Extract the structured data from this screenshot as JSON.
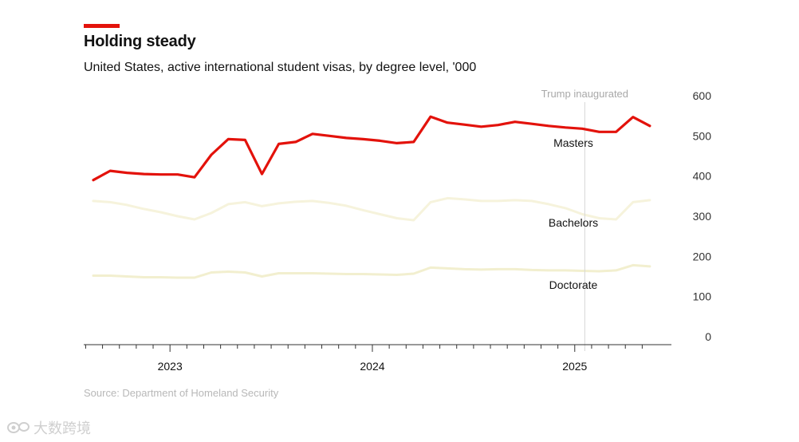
{
  "header": {
    "title": "Holding steady",
    "subtitle": "United States, active international student visas, by degree level, '000"
  },
  "footer": {
    "source": "Source: Department of Homeland Security",
    "watermark": "大数跨境",
    "watermark_icon": "eye-logo-icon"
  },
  "colors": {
    "accent": "#e3120b",
    "masters": "#e3120b",
    "bachelors": "#f6f3dc",
    "doctorate": "#f2efcf",
    "annotation": "#a8a8a8"
  },
  "chart_data": {
    "type": "line",
    "title": "Holding steady",
    "subtitle": "United States, active international student visas, by degree level, '000",
    "x_unit": "month",
    "x_start": "2022-08",
    "x_end": "2025-05",
    "x_ticks": [
      "2023",
      "2024",
      "2025"
    ],
    "ylim": [
      0,
      600
    ],
    "y_ticks": [
      0,
      100,
      200,
      300,
      400,
      500,
      600
    ],
    "y_axis_side": "right",
    "grid": false,
    "annotation": {
      "label": "Trump inaugurated",
      "at": "2025-01"
    },
    "series": [
      {
        "name": "Masters",
        "color": "#e3120b",
        "values": [
          390,
          413,
          408,
          405,
          404,
          404,
          397,
          453,
          492,
          490,
          405,
          480,
          485,
          505,
          500,
          495,
          492,
          488,
          482,
          485,
          548,
          533,
          528,
          523,
          527,
          535,
          530,
          525,
          521,
          518,
          510,
          510,
          547,
          525
        ]
      },
      {
        "name": "Bachelors",
        "color": "#f6f3dc",
        "values": [
          338,
          335,
          328,
          318,
          310,
          300,
          292,
          308,
          330,
          335,
          325,
          332,
          336,
          338,
          333,
          326,
          315,
          305,
          295,
          290,
          335,
          345,
          342,
          338,
          338,
          340,
          338,
          330,
          320,
          305,
          295,
          292,
          335,
          340
        ]
      },
      {
        "name": "Doctorate",
        "color": "#f2efcf",
        "values": [
          152,
          152,
          150,
          148,
          148,
          147,
          147,
          160,
          162,
          160,
          150,
          158,
          158,
          158,
          157,
          156,
          156,
          155,
          154,
          157,
          172,
          170,
          168,
          167,
          168,
          168,
          166,
          165,
          165,
          164,
          163,
          165,
          178,
          175
        ]
      }
    ]
  }
}
